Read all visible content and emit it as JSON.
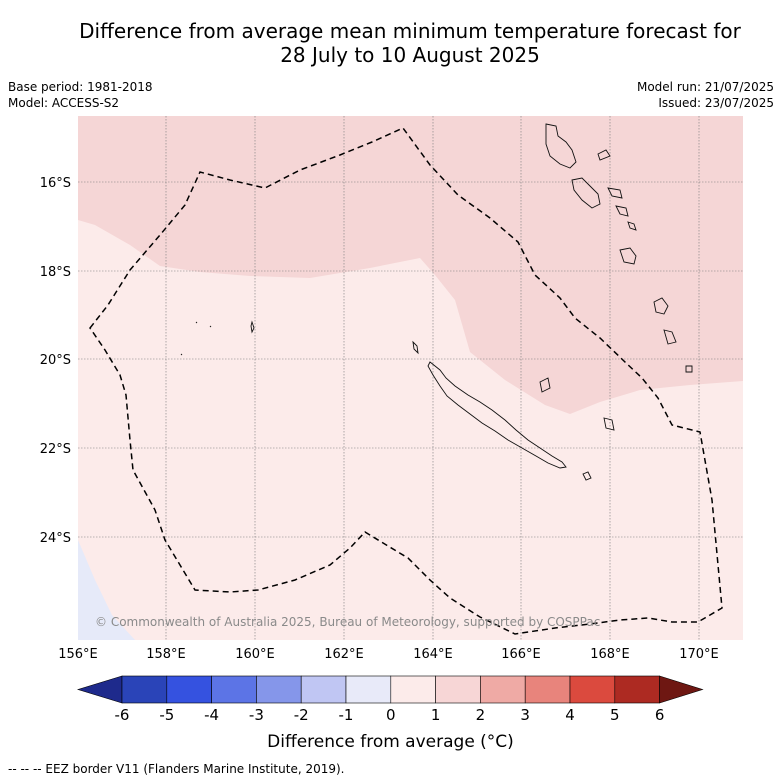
{
  "title_line1": "Difference from average mean minimum temperature forecast for",
  "title_line2": "28 July to 10 August 2025",
  "base_period": "Base period: 1981-2018",
  "model": "Model: ACCESS-S2",
  "model_run": "Model run: 21/07/2025",
  "issued": "Issued: 23/07/2025",
  "copyright": "© Commonwealth of Australia 2025, Bureau of Meteorology, supported by COSPPac",
  "lat_labels": [
    "16°S",
    "18°S",
    "20°S",
    "22°S",
    "24°S"
  ],
  "lon_labels": [
    "156°E",
    "158°E",
    "160°E",
    "162°E",
    "164°E",
    "166°E",
    "168°E",
    "170°E"
  ],
  "colorbar": {
    "label": "Difference from average (°C)",
    "ticks": [
      "-6",
      "-5",
      "-4",
      "-3",
      "-2",
      "-1",
      "0",
      "1",
      "2",
      "3",
      "4",
      "5",
      "6"
    ],
    "colors": [
      "#1e2a8c",
      "#2a44b8",
      "#3552e0",
      "#5c74e6",
      "#8596ea",
      "#c0c6f3",
      "#e8eaf9",
      "#fcebea",
      "#f7d6d6",
      "#efaaa5",
      "#e8847c",
      "#db4a3e",
      "#ad2a22",
      "#6e1712"
    ]
  },
  "footer": "--  --  -- EEZ border V11 (Flanders Marine Institute, 2019)."
}
